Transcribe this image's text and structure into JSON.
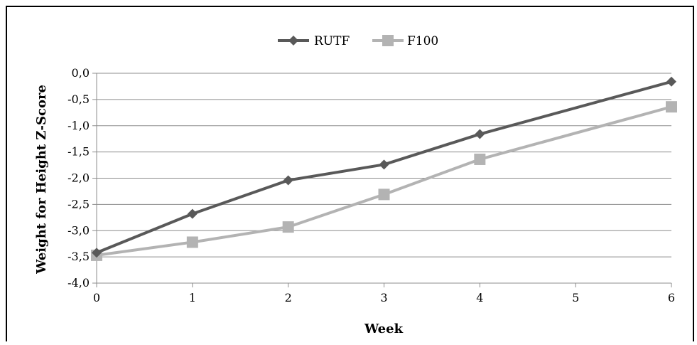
{
  "chart_data": {
    "type": "line",
    "title": "",
    "xlabel": "Week",
    "ylabel": "Weight for Height Z-Score",
    "x": [
      0,
      1,
      2,
      3,
      4,
      6
    ],
    "x_ticks": [
      "0",
      "1",
      "2",
      "3",
      "4",
      "5",
      "6"
    ],
    "xlim": [
      0,
      6
    ],
    "y_ticks": [
      "0,0",
      "-0,5",
      "-1,0",
      "-1,5",
      "-2,0",
      "-2,5",
      "-3,0",
      "-3,5",
      "-4,0"
    ],
    "ylim": [
      -4.0,
      0.0
    ],
    "grid": "horizontal",
    "legend_position": "top-center",
    "series": [
      {
        "name": "RUTF",
        "marker": "diamond",
        "color": "#595959",
        "values": [
          -3.42,
          -2.68,
          -2.04,
          -1.74,
          -1.16,
          -0.16
        ]
      },
      {
        "name": "F100",
        "marker": "square",
        "color": "#b3b3b3",
        "values": [
          -3.47,
          -3.22,
          -2.93,
          -2.31,
          -1.64,
          -0.64
        ]
      }
    ]
  }
}
